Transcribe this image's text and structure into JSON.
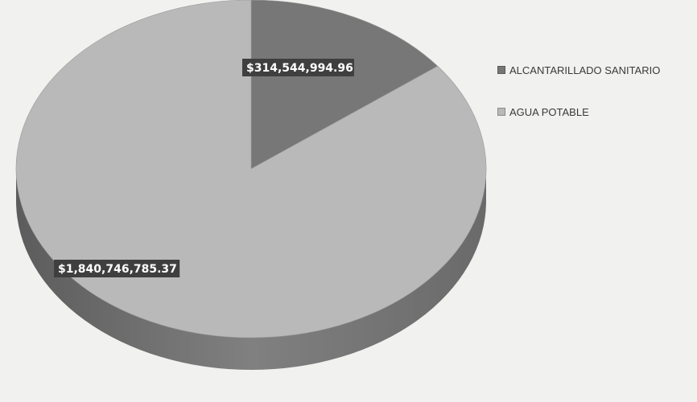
{
  "chart_data": {
    "type": "pie",
    "categories": [
      "ALCANTARILLADO SANITARIO",
      "AGUA POTABLE"
    ],
    "values": [
      314544994.96,
      1840746785.37
    ],
    "data_labels": [
      "$314,544,994.96",
      "$1,840,746,785.37"
    ],
    "colors": [
      "#777777",
      "#b9b9b9"
    ],
    "legend_position": "right",
    "three_d": true
  }
}
